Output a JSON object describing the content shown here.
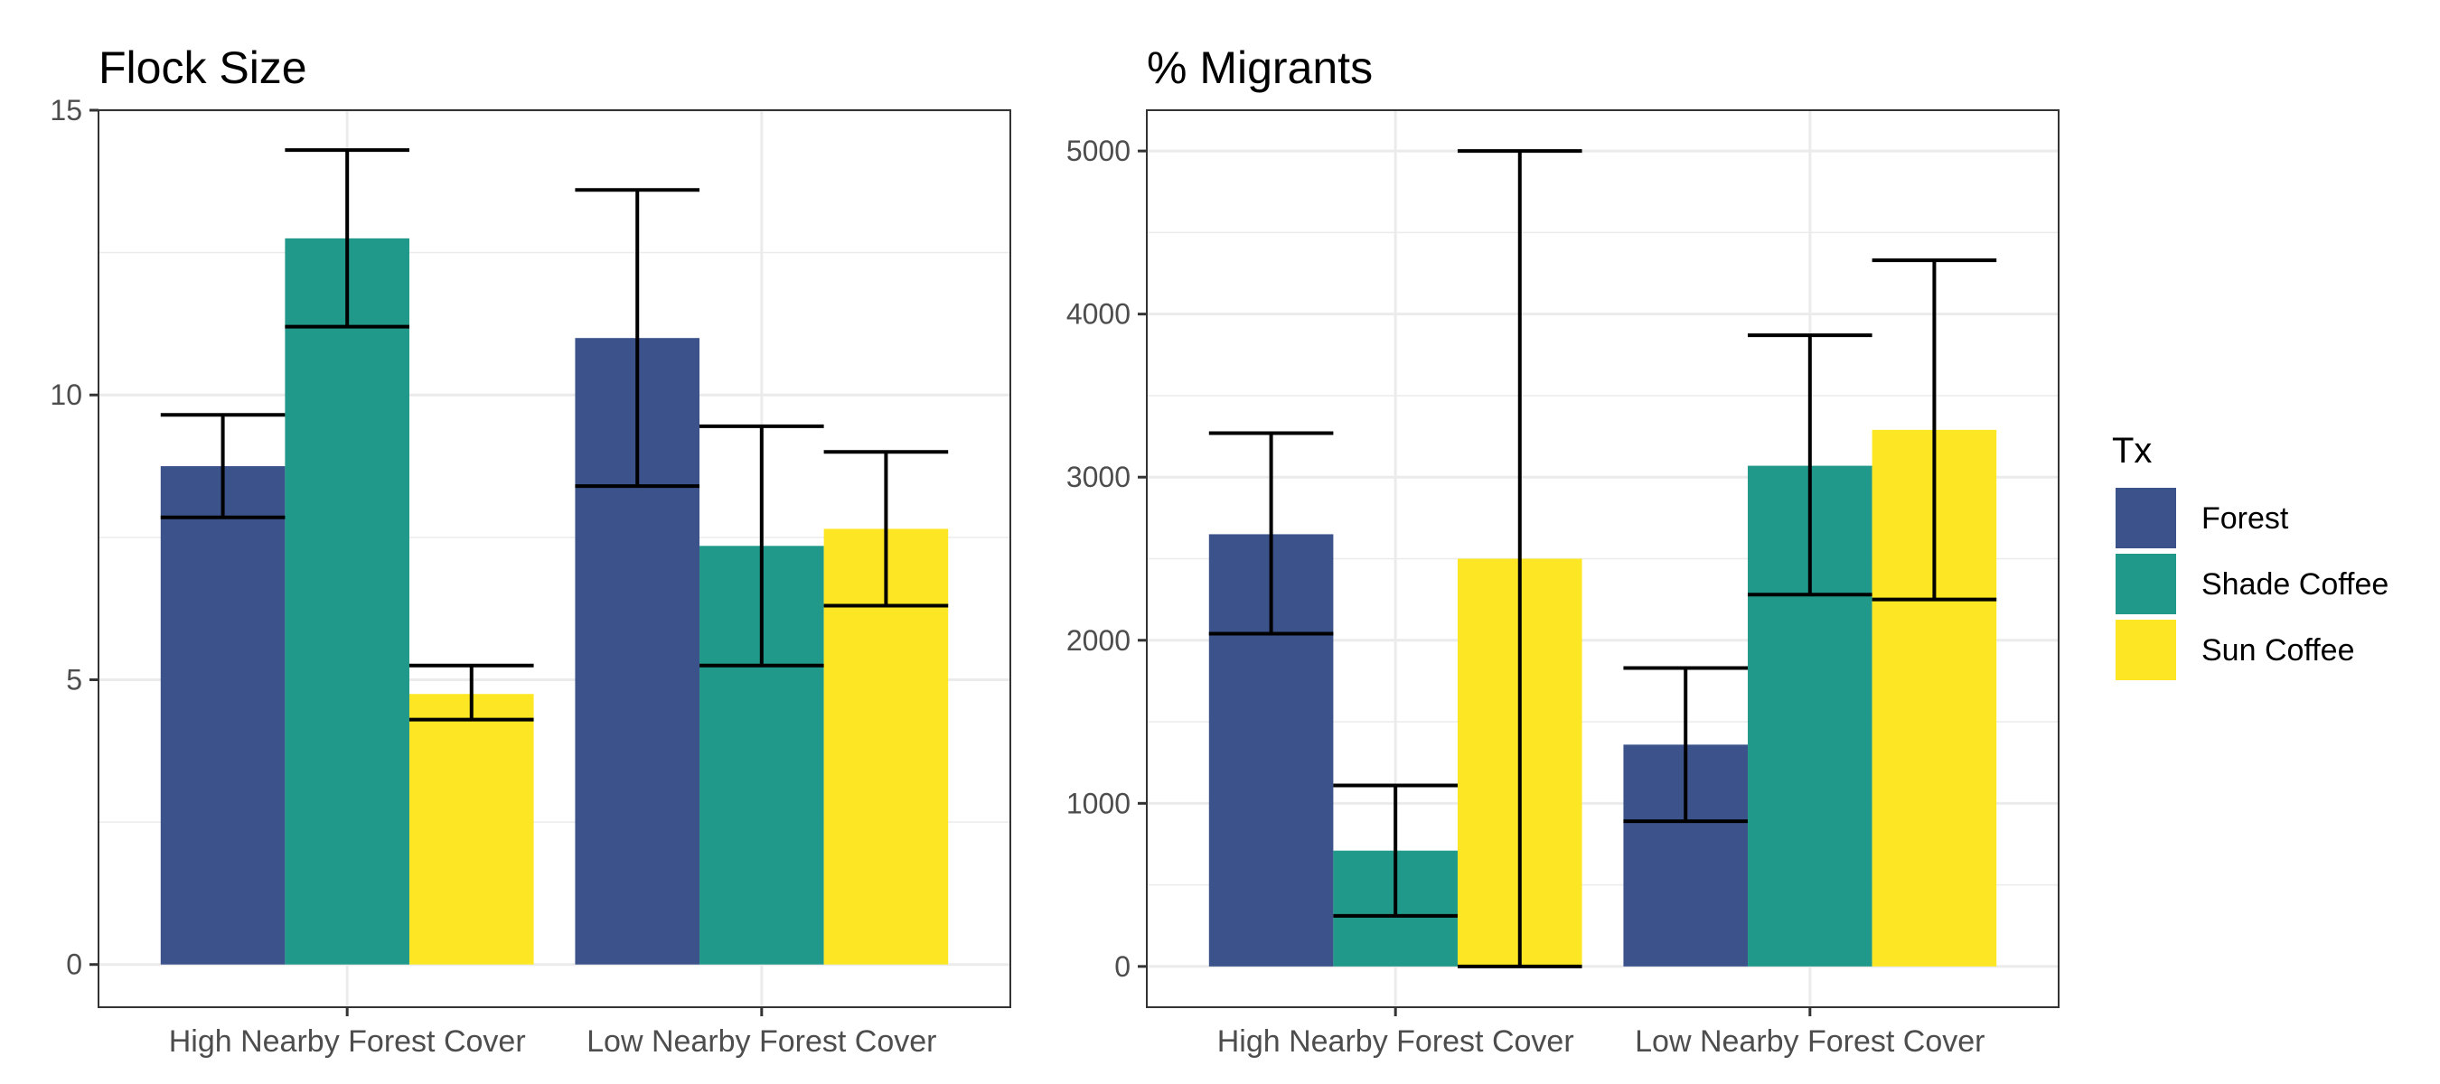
{
  "colors": {
    "Forest": "#3b528b",
    "Shade Coffee": "#21998a",
    "Sun Coffee": "#fde725",
    "grid": "#ebebeb",
    "panel_border": "#333333",
    "error_bar": "#000000"
  },
  "legend": {
    "title": "Tx",
    "placement": "right",
    "items": [
      {
        "label": "Forest",
        "color": "#3b528b"
      },
      {
        "label": "Shade Coffee",
        "color": "#21998a"
      },
      {
        "label": "Sun Coffee",
        "color": "#fde725"
      }
    ]
  },
  "chart_data": [
    {
      "type": "bar",
      "title": "Flock Size",
      "xlabel": "",
      "ylabel": "",
      "categories": [
        "High Nearby Forest Cover",
        "Low Nearby Forest Cover"
      ],
      "ylim": [
        -0.75,
        15
      ],
      "yticks": [
        0,
        5,
        10,
        15
      ],
      "grid": true,
      "series": [
        {
          "name": "Forest",
          "values": [
            8.75,
            11.0
          ],
          "err_low": [
            7.85,
            8.4
          ],
          "err_high": [
            9.65,
            13.6
          ]
        },
        {
          "name": "Shade Coffee",
          "values": [
            12.75,
            7.35
          ],
          "err_low": [
            11.2,
            5.25
          ],
          "err_high": [
            14.3,
            9.45
          ]
        },
        {
          "name": "Sun Coffee",
          "values": [
            4.75,
            7.65
          ],
          "err_low": [
            4.3,
            6.3
          ],
          "err_high": [
            5.25,
            9.0
          ]
        }
      ]
    },
    {
      "type": "bar",
      "title": "% Migrants",
      "xlabel": "",
      "ylabel": "",
      "categories": [
        "High Nearby Forest Cover",
        "Low Nearby Forest Cover"
      ],
      "ylim": [
        -250,
        5250
      ],
      "yticks": [
        0,
        1000,
        2000,
        3000,
        4000,
        5000
      ],
      "grid": true,
      "series": [
        {
          "name": "Forest",
          "values": [
            2650,
            1360
          ],
          "err_low": [
            2040,
            890
          ],
          "err_high": [
            3270,
            1830
          ]
        },
        {
          "name": "Shade Coffee",
          "values": [
            710,
            3070
          ],
          "err_low": [
            310,
            2280
          ],
          "err_high": [
            1110,
            3870
          ]
        },
        {
          "name": "Sun Coffee",
          "values": [
            2500,
            3290
          ],
          "err_low": [
            0,
            2250
          ],
          "err_high": [
            5000,
            4330
          ]
        }
      ]
    }
  ]
}
